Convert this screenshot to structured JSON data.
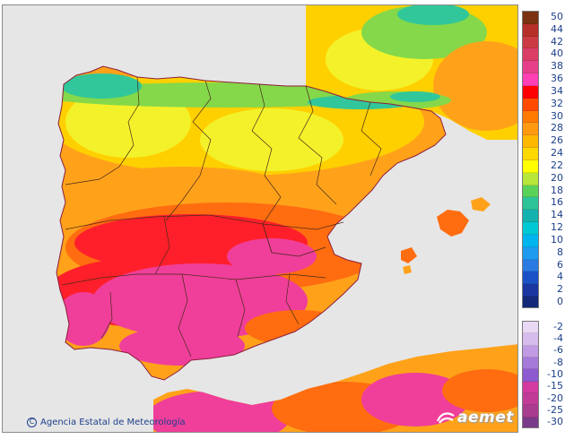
{
  "map": {
    "credit": "Agencia Estatal de Meteorología",
    "copyright_symbol": "C",
    "logo_text": "aemet"
  },
  "colors": {
    "sea": "#e6e6e6",
    "coast": "#8c1d3c",
    "border": "#4a2a1a",
    "extreme": "#ef3f9a",
    "very_hot": "#ff1f2a",
    "hot": "#ff6d10",
    "warm": "#ffa21a",
    "mild": "#ffd000",
    "cool": "#f3f22a",
    "green": "#84d84a",
    "teal": "#31c79a",
    "cyan": "#16a8b6"
  },
  "legend": {
    "warm": [
      {
        "label": "50",
        "color": "#7a3210"
      },
      {
        "label": "44",
        "color": "#b62f28"
      },
      {
        "label": "42",
        "color": "#cc3b44"
      },
      {
        "label": "40",
        "color": "#da3d66"
      },
      {
        "label": "38",
        "color": "#e6408a"
      },
      {
        "label": "36",
        "color": "#ff3fb4"
      },
      {
        "label": "34",
        "color": "#ff0000"
      },
      {
        "label": "32",
        "color": "#ff4a00"
      },
      {
        "label": "30",
        "color": "#ff7b00"
      },
      {
        "label": "28",
        "color": "#ff9a10"
      },
      {
        "label": "26",
        "color": "#ffb800"
      },
      {
        "label": "24",
        "color": "#ffd800"
      },
      {
        "label": "22",
        "color": "#ffff00"
      },
      {
        "label": "20",
        "color": "#b8e63a"
      },
      {
        "label": "18",
        "color": "#5ad25a"
      },
      {
        "label": "16",
        "color": "#2ec49a"
      },
      {
        "label": "14",
        "color": "#14b2ae"
      },
      {
        "label": "12",
        "color": "#00c8d4"
      },
      {
        "label": "10",
        "color": "#00b4ee"
      },
      {
        "label": "8",
        "color": "#1e9aee"
      },
      {
        "label": "6",
        "color": "#2a7ae2"
      },
      {
        "label": "4",
        "color": "#1a52c6"
      },
      {
        "label": "2",
        "color": "#1a36a0"
      },
      {
        "label": "0",
        "color": "#142a78"
      }
    ],
    "cold": [
      {
        "label": "-2",
        "color": "#e8d8f4"
      },
      {
        "label": "-4",
        "color": "#d6bcec"
      },
      {
        "label": "-6",
        "color": "#c09ae2"
      },
      {
        "label": "-8",
        "color": "#a57ad8"
      },
      {
        "label": "-10",
        "color": "#8e5ad0"
      },
      {
        "label": "-15",
        "color": "#d23ca0"
      },
      {
        "label": "-20",
        "color": "#c03c96"
      },
      {
        "label": "-25",
        "color": "#a83c8e"
      },
      {
        "label": "-30",
        "color": "#7a3a8a"
      }
    ]
  }
}
